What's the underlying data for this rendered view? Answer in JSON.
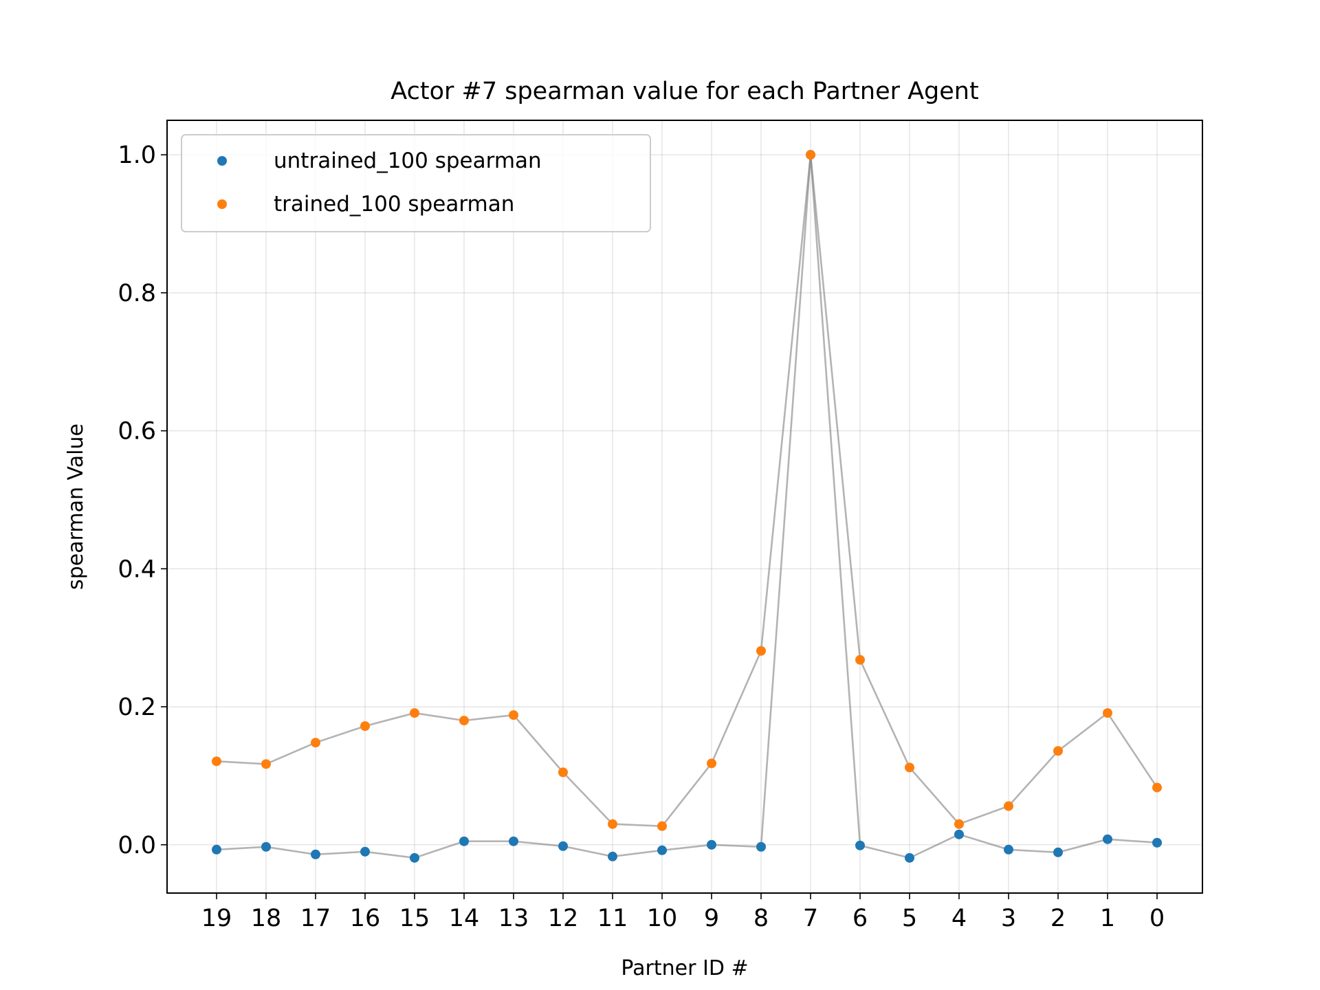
{
  "chart_data": {
    "type": "scatter",
    "title": "Actor #7 spearman value for each Partner Agent",
    "xlabel": "Partner ID #",
    "ylabel": "spearman Value",
    "categories": [
      "19",
      "18",
      "17",
      "16",
      "15",
      "14",
      "13",
      "12",
      "11",
      "10",
      "9",
      "8",
      "7",
      "6",
      "5",
      "4",
      "3",
      "2",
      "1",
      "0"
    ],
    "ylim": [
      -0.07,
      1.05
    ],
    "yticks": [
      "0.0",
      "0.2",
      "0.4",
      "0.6",
      "0.8",
      "1.0"
    ],
    "grid": true,
    "legend_position": "upper-left",
    "series": [
      {
        "name": "untrained_100 spearman",
        "color": "#1f77b4",
        "values": [
          -0.007,
          -0.003,
          -0.014,
          -0.01,
          -0.019,
          0.005,
          0.005,
          -0.002,
          -0.017,
          -0.008,
          0.0,
          -0.003,
          1.0,
          -0.001,
          -0.019,
          0.015,
          -0.007,
          -0.011,
          0.008,
          0.003
        ]
      },
      {
        "name": "trained_100 spearman",
        "color": "#ff7f0e",
        "values": [
          0.121,
          0.117,
          0.148,
          0.172,
          0.191,
          0.18,
          0.188,
          0.105,
          0.03,
          0.027,
          0.118,
          0.281,
          1.0,
          0.268,
          0.112,
          0.03,
          0.056,
          0.136,
          0.191,
          0.083
        ]
      }
    ],
    "line_color": "#808080"
  }
}
